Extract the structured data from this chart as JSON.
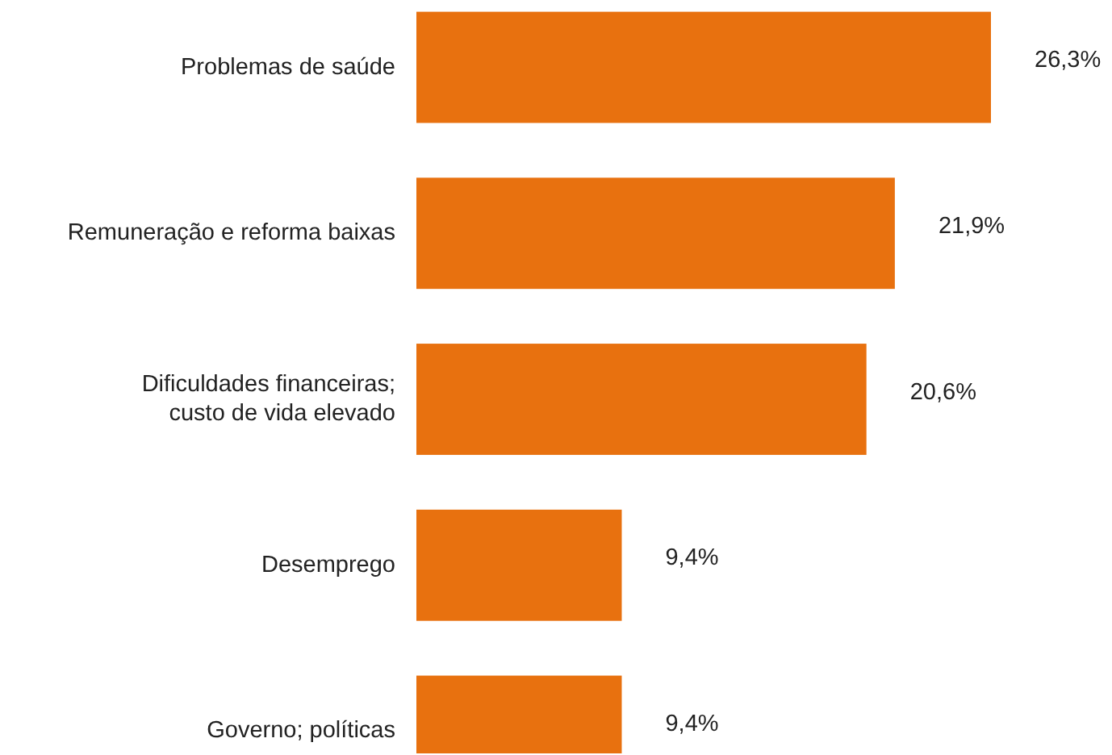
{
  "chart_data": {
    "type": "bar",
    "orientation": "horizontal",
    "categories": [
      "Problemas de saúde",
      "Remuneração e reforma baixas",
      "Dificuldades financeiras;\ncusto de vida elevado",
      "Desemprego",
      "Governo; políticas"
    ],
    "values": [
      26.3,
      21.9,
      20.6,
      9.4,
      9.4
    ],
    "value_labels": [
      "26,3%",
      "21,9%",
      "20,6%",
      "9,4%",
      "9,4%"
    ],
    "color": "#e8710f"
  }
}
